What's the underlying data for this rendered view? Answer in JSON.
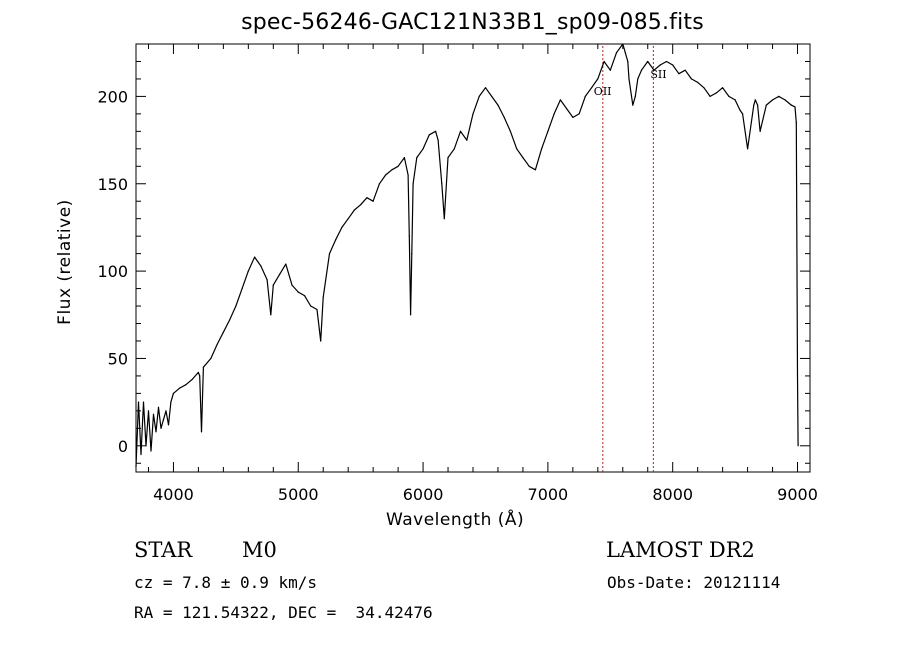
{
  "chart_data": {
    "type": "line",
    "title": "spec-56246-GAC121N33B1_sp09-085.fits",
    "xlabel": "Wavelength (Å)",
    "ylabel": "Flux (relative)",
    "xlim": [
      3700,
      9100
    ],
    "ylim": [
      -15,
      230
    ],
    "xticks": [
      4000,
      5000,
      6000,
      7000,
      8000,
      9000
    ],
    "yticks": [
      0,
      50,
      100,
      150,
      200
    ],
    "grid": false,
    "line_color": "#000000",
    "marker_color": "#b22222",
    "lines": [
      {
        "label": "OII",
        "x": 7440
      },
      {
        "label": "SII",
        "x": 7845
      }
    ],
    "series": [
      {
        "x": [
          3700,
          3720,
          3740,
          3760,
          3780,
          3800,
          3820,
          3840,
          3860,
          3880,
          3900,
          3920,
          3940,
          3960,
          3980,
          4000,
          4050,
          4100,
          4150,
          4200,
          4210,
          4225,
          4240,
          4300,
          4350,
          4400,
          4450,
          4500,
          4550,
          4600,
          4650,
          4700,
          4750,
          4780,
          4800,
          4850,
          4900,
          4950,
          5000,
          5050,
          5100,
          5150,
          5180,
          5200,
          5250,
          5300,
          5350,
          5400,
          5450,
          5500,
          5550,
          5600,
          5650,
          5700,
          5750,
          5800,
          5850,
          5880,
          5890,
          5900,
          5910,
          5920,
          5950,
          6000,
          6050,
          6100,
          6120,
          6150,
          6170,
          6200,
          6250,
          6300,
          6350,
          6400,
          6450,
          6500,
          6550,
          6600,
          6650,
          6700,
          6750,
          6800,
          6850,
          6900,
          6950,
          7000,
          7050,
          7100,
          7150,
          7200,
          7250,
          7300,
          7350,
          7400,
          7450,
          7500,
          7550,
          7600,
          7620,
          7640,
          7650,
          7680,
          7700,
          7720,
          7750,
          7800,
          7850,
          7900,
          7950,
          8000,
          8050,
          8100,
          8150,
          8200,
          8250,
          8300,
          8350,
          8400,
          8450,
          8500,
          8540,
          8560,
          8600,
          8650,
          8662,
          8680,
          8700,
          8750,
          8800,
          8850,
          8900,
          8950,
          8980,
          8990,
          9000,
          9005
        ],
        "values": [
          -12,
          25,
          -5,
          25,
          0,
          20,
          -3,
          18,
          8,
          22,
          10,
          15,
          20,
          12,
          25,
          30,
          33,
          35,
          38,
          42,
          40,
          8,
          45,
          50,
          58,
          65,
          72,
          80,
          90,
          100,
          108,
          103,
          95,
          75,
          92,
          98,
          104,
          92,
          88,
          86,
          80,
          78,
          60,
          85,
          110,
          118,
          125,
          130,
          135,
          138,
          142,
          140,
          150,
          155,
          158,
          160,
          165,
          155,
          120,
          75,
          110,
          150,
          165,
          170,
          178,
          180,
          175,
          150,
          130,
          165,
          170,
          180,
          175,
          190,
          200,
          205,
          200,
          195,
          188,
          180,
          170,
          165,
          160,
          158,
          170,
          180,
          190,
          198,
          193,
          188,
          190,
          200,
          205,
          210,
          220,
          215,
          225,
          230,
          225,
          220,
          210,
          195,
          200,
          210,
          215,
          220,
          215,
          218,
          220,
          218,
          213,
          215,
          210,
          208,
          205,
          200,
          202,
          205,
          200,
          198,
          192,
          190,
          170,
          195,
          198,
          195,
          180,
          195,
          198,
          200,
          198,
          195,
          194,
          185,
          40,
          0
        ]
      }
    ]
  },
  "footer": {
    "object_class": "STAR",
    "subclass": "M0",
    "survey": "LAMOST DR2",
    "cz": "cz = 7.8 ± 0.9 km/s",
    "obs_date": "Obs-Date: 20121114",
    "coords": "RA = 121.54322, DEC =  34.42476"
  }
}
